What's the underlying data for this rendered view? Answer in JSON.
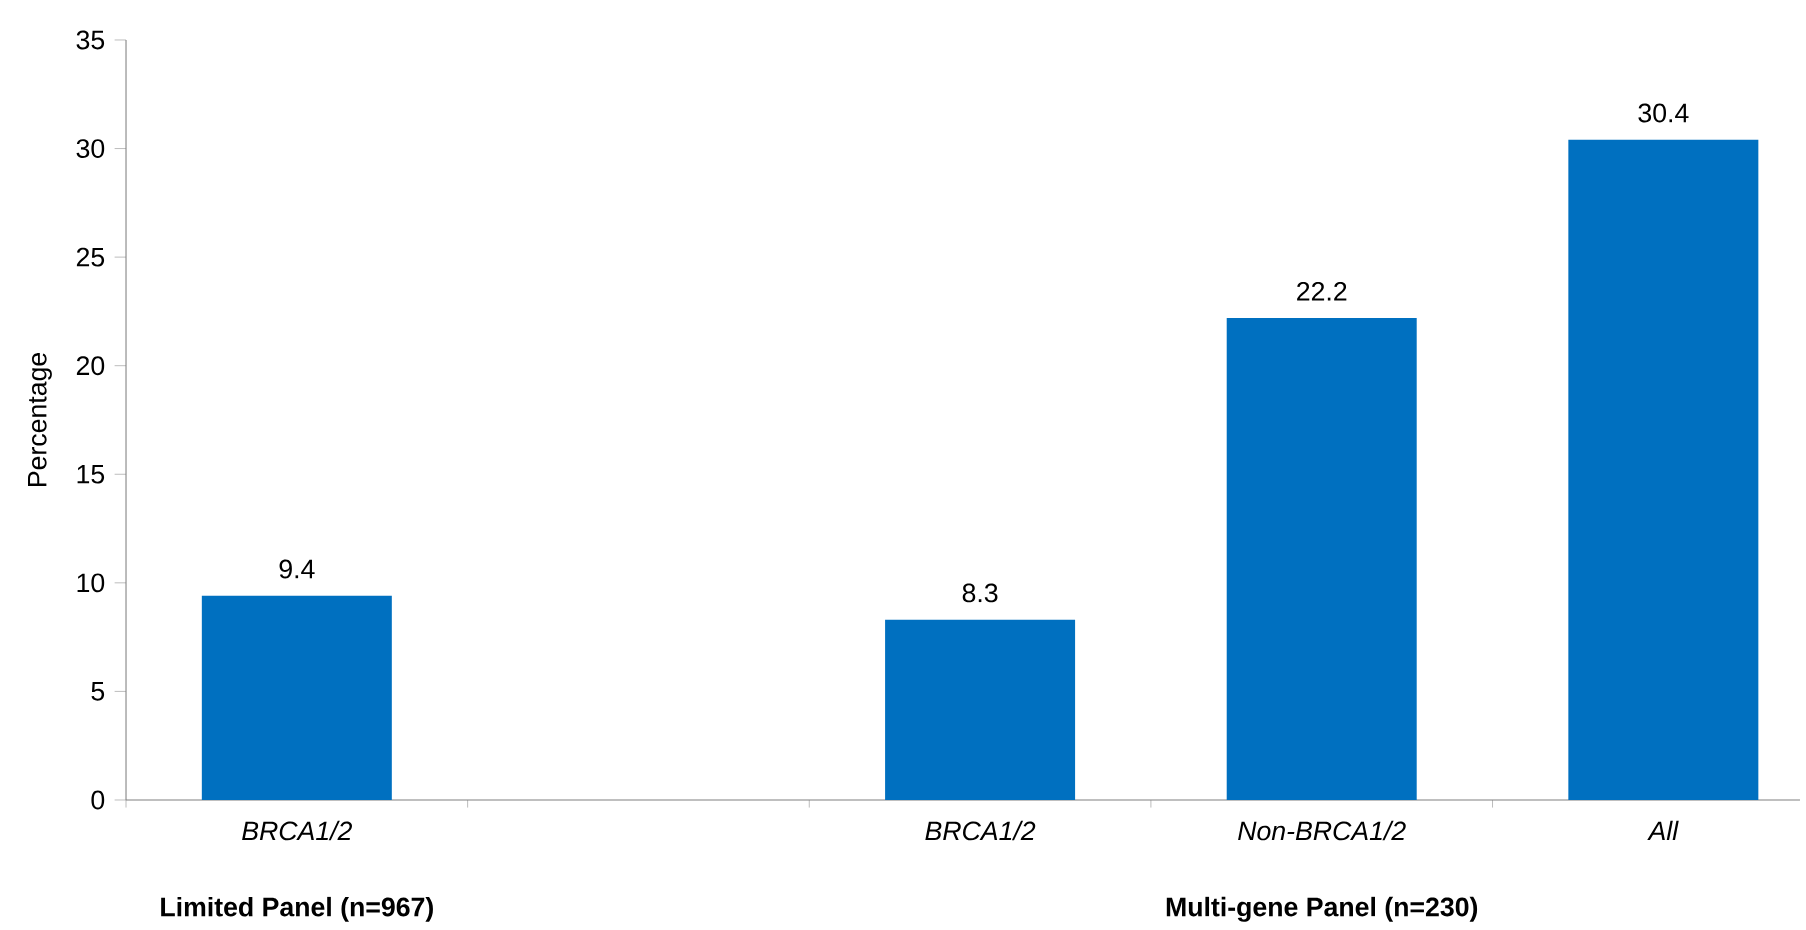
{
  "chart_data": {
    "type": "bar",
    "ylabel": "Percentage",
    "categories": [
      "BRCA1/2",
      null,
      "BRCA1/2",
      "Non-BRCA1/2",
      "All"
    ],
    "values": [
      9.4,
      null,
      8.3,
      22.2,
      30.4
    ],
    "color": "#0070c0",
    "ylim": [
      0,
      35
    ],
    "yticks": [
      0,
      5,
      10,
      15,
      20,
      25,
      30,
      35
    ],
    "data_labels": true,
    "grid": false,
    "annotations": [
      "Limited Panel (n=967)",
      "Multi-gene Panel (n=230)"
    ]
  }
}
